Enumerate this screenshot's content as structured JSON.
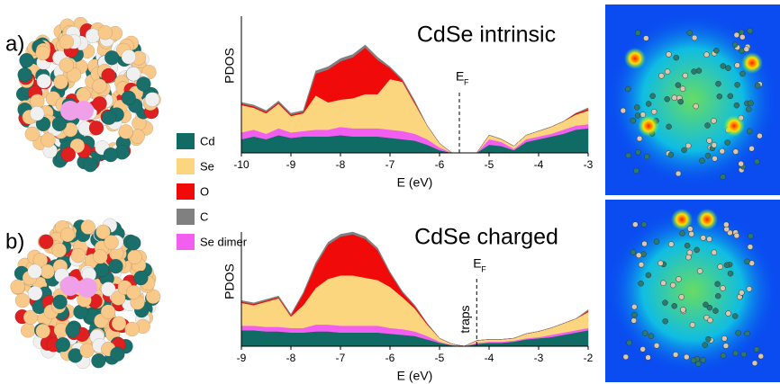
{
  "chart_data": [
    {
      "type": "area",
      "panel_label": "a)",
      "title": "CdSe intrinsic",
      "ylabel": "PDOS",
      "xlabel": "E (eV)",
      "x": [
        -10,
        -9.75,
        -9.5,
        -9.25,
        -9,
        -8.75,
        -8.5,
        -8.25,
        -8,
        -7.75,
        -7.5,
        -7.25,
        -7,
        -6.75,
        -6.5,
        -6.25,
        -6,
        -5.75,
        -5.5,
        -5.25,
        -5,
        -4.75,
        -4.5,
        -4.25,
        -4,
        -3.75,
        -3.5,
        -3.25,
        -3
      ],
      "xlim": [
        -10,
        -3
      ],
      "xticks": [
        -10,
        -9,
        -8,
        -7,
        -6,
        -5,
        -4,
        -3
      ],
      "ylim": [
        0,
        100
      ],
      "stacked": true,
      "fermi_label": "E",
      "fermi_subscript": "F",
      "fermi_level": -5.6,
      "series": [
        {
          "name": "Cd",
          "color": "#0f6b64",
          "values": [
            10,
            12,
            10,
            13,
            11,
            12,
            12,
            12,
            13,
            12,
            12,
            12,
            11,
            10,
            9,
            6,
            2,
            0,
            0,
            0,
            6,
            5,
            2,
            8,
            10,
            12,
            14,
            17,
            18
          ]
        },
        {
          "name": "Se",
          "color": "#fcd67e",
          "values": [
            20,
            16,
            15,
            18,
            12,
            13,
            25,
            20,
            20,
            22,
            25,
            25,
            37,
            36,
            22,
            10,
            3,
            0,
            0,
            0,
            3,
            2,
            2,
            3,
            4,
            5,
            6,
            8,
            10
          ]
        },
        {
          "name": "O",
          "color": "#f00a0a",
          "values": [
            1,
            1,
            1,
            1,
            1,
            1,
            16,
            24,
            28,
            30,
            34,
            25,
            8,
            1,
            1,
            0,
            0,
            0,
            0,
            0,
            0,
            0,
            0,
            0,
            0,
            0,
            0,
            1,
            1
          ]
        },
        {
          "name": "C",
          "color": "#808080",
          "values": [
            1,
            1,
            1,
            1,
            1,
            1,
            2,
            2,
            2,
            2,
            2,
            2,
            1,
            1,
            1,
            0,
            0,
            0,
            0,
            0,
            0,
            0,
            0,
            0,
            0,
            0,
            0,
            0,
            1
          ]
        },
        {
          "name": "Se dimer",
          "color": "#f25ff0",
          "values": [
            5,
            5,
            4,
            5,
            4,
            4,
            5,
            5,
            6,
            6,
            6,
            6,
            6,
            6,
            5,
            4,
            2,
            0,
            0,
            0,
            4,
            3,
            1,
            2,
            2,
            2,
            3,
            3,
            3
          ]
        }
      ]
    },
    {
      "type": "area",
      "panel_label": "b)",
      "title": "CdSe charged",
      "ylabel": "PDOS",
      "xlabel": "E (eV)",
      "x": [
        -9,
        -8.75,
        -8.5,
        -8.25,
        -8,
        -7.75,
        -7.5,
        -7.25,
        -7,
        -6.75,
        -6.5,
        -6.25,
        -6,
        -5.75,
        -5.5,
        -5.25,
        -5,
        -4.75,
        -4.5,
        -4.25,
        -4,
        -3.75,
        -3.5,
        -3.25,
        -3,
        -2.75,
        -2.5,
        -2.25,
        -2
      ],
      "xlim": [
        -9,
        -2
      ],
      "xticks": [
        -9,
        -8,
        -7,
        -6,
        -5,
        -4,
        -3,
        -2
      ],
      "ylim": [
        0,
        100
      ],
      "stacked": true,
      "fermi_label": "E",
      "fermi_subscript": "F",
      "fermi_level": -4.25,
      "traps_label": "traps",
      "series": [
        {
          "values": [
            14,
            14,
            13,
            13,
            12,
            12,
            13,
            13,
            12,
            12,
            12,
            12,
            11,
            10,
            9,
            6,
            3,
            1,
            0,
            2,
            3,
            3,
            4,
            6,
            7,
            8,
            10,
            12,
            14
          ]
        },
        {
          "values": [
            20,
            18,
            22,
            25,
            10,
            20,
            32,
            40,
            44,
            44,
            42,
            40,
            36,
            28,
            20,
            10,
            3,
            1,
            0,
            2,
            2,
            2,
            2,
            4,
            5,
            6,
            8,
            10,
            14
          ]
        },
        {
          "values": [
            1,
            1,
            1,
            1,
            1,
            10,
            20,
            30,
            34,
            36,
            34,
            26,
            12,
            4,
            2,
            1,
            0,
            0,
            0,
            0,
            0,
            0,
            0,
            0,
            0,
            0,
            0,
            0,
            1
          ]
        },
        {
          "values": [
            1,
            1,
            1,
            1,
            1,
            1,
            2,
            2,
            2,
            2,
            2,
            2,
            1,
            1,
            1,
            0,
            0,
            0,
            0,
            0,
            0,
            0,
            0,
            0,
            0,
            0,
            0,
            0,
            1
          ]
        },
        {
          "values": [
            4,
            4,
            4,
            4,
            4,
            4,
            6,
            6,
            6,
            6,
            6,
            6,
            5,
            5,
            4,
            3,
            1,
            0,
            0,
            1,
            1,
            1,
            1,
            1,
            1,
            2,
            2,
            2,
            2
          ]
        }
      ]
    }
  ]
}
